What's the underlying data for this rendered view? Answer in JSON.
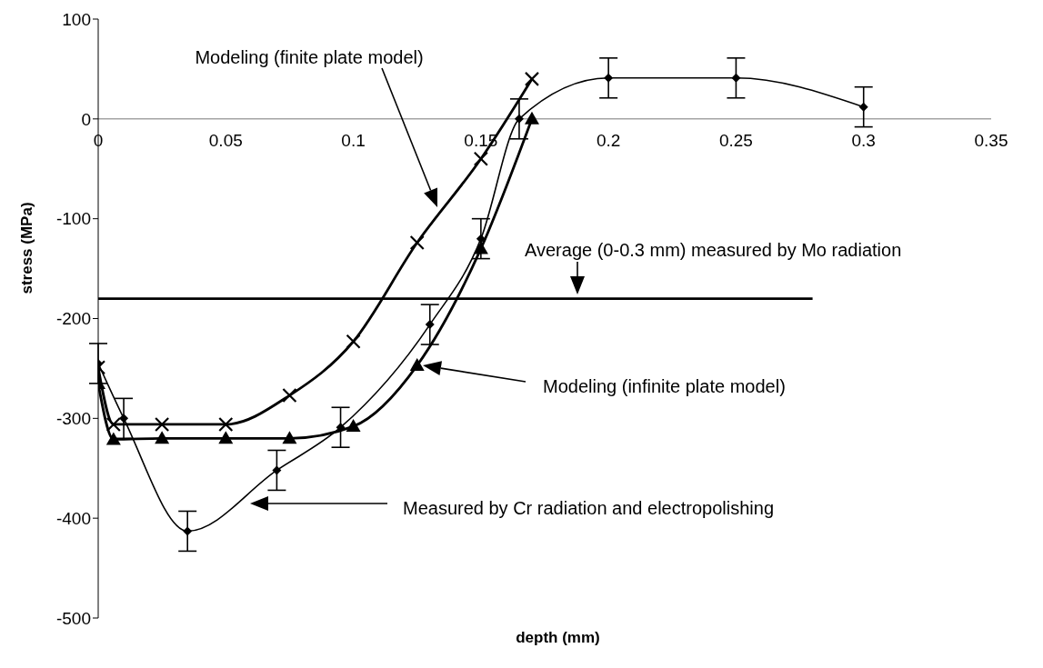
{
  "chart_data": {
    "type": "line",
    "xlabel": "depth (mm)",
    "ylabel": "stress (MPa)",
    "xlim": [
      0,
      0.35
    ],
    "xticks": [
      0,
      0.05,
      0.1,
      0.15,
      0.2,
      0.25,
      0.3,
      0.35
    ],
    "ylim": [
      -500,
      100
    ],
    "yticks": [
      -500,
      -400,
      -300,
      -200,
      -100,
      0,
      100
    ],
    "grid": false,
    "legend": false,
    "line_style": "solid",
    "series": [
      {
        "color": "#000000",
        "marker": "diamond",
        "x": [
          0,
          0.01,
          0.035,
          0.07,
          0.095,
          0.13,
          0.15,
          0.165,
          0.2,
          0.25,
          0.3
        ],
        "values": [
          -245,
          -300,
          -413,
          -352,
          -309,
          -206,
          -120,
          0,
          41,
          41,
          12
        ],
        "errors": [
          20,
          20,
          20,
          20,
          20,
          20,
          20,
          20,
          20,
          20,
          20
        ]
      },
      {
        "color": "#000000",
        "marker": "cross",
        "x": [
          0,
          0.006,
          0.025,
          0.05,
          0.075,
          0.1,
          0.125,
          0.15,
          0.17
        ],
        "values": [
          -249,
          -306,
          -306,
          -306,
          -277,
          -223,
          -124,
          -40,
          40
        ]
      },
      {
        "color": "#000000",
        "marker": "triangle",
        "x": [
          0,
          0.006,
          0.025,
          0.05,
          0.075,
          0.1,
          0.125,
          0.15,
          0.17
        ],
        "values": [
          -265,
          -321,
          -320,
          -320,
          -320,
          -308,
          -247,
          -130,
          0
        ]
      },
      {
        "color": "#000000",
        "marker": "none",
        "x": [
          0,
          0.28
        ],
        "values": [
          -180,
          -180
        ]
      }
    ],
    "annotations": [
      "Modeling (finite plate model)",
      "Average (0-0.3 mm) measured by Mo radiation",
      "Modeling (infinite plate model)",
      "Measured by Cr radiation and electropolishing"
    ]
  }
}
